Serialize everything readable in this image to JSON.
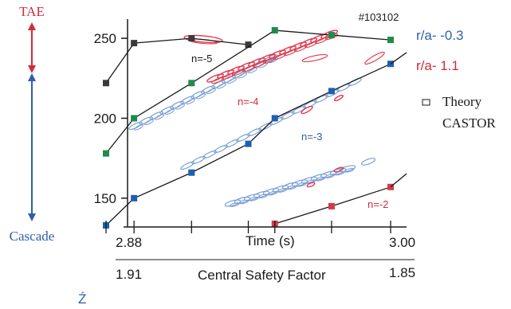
{
  "chart_data": {
    "type": "scatter",
    "title": "",
    "shot_label": "#103102",
    "xlabel": "Time (s)",
    "x_ticks": [
      "2.88",
      "3.00"
    ],
    "secondary_xlabel": "Central Safety Factor",
    "secondary_x_ticks": [
      "1.91",
      "1.85"
    ],
    "ylabel": "",
    "ylim": [
      132,
      262
    ],
    "y_ticks": [
      150,
      200,
      250
    ],
    "legend": {
      "blue_label": "r/a- -0.3",
      "red_label": "r/a- 1.1",
      "theory_line1": "Theory",
      "theory_line2": "CASTOR"
    },
    "left_annotations": {
      "top": "TAE",
      "bottom": "Cascade"
    },
    "mode_labels": [
      "n=-5",
      "n=-4",
      "n=-3",
      "n=-2"
    ],
    "theory_series": [
      {
        "name": "n=-5",
        "color": "#3a3a3a",
        "points": [
          [
            2.88,
            222
          ],
          [
            2.8837,
            247
          ],
          [
            2.8913,
            250
          ],
          [
            2.8988,
            246
          ]
        ]
      },
      {
        "name": "n=-4",
        "color": "#1f8a4c",
        "points": [
          [
            2.88,
            178
          ],
          [
            2.8837,
            200
          ],
          [
            2.8913,
            222
          ],
          [
            2.9023,
            255
          ],
          [
            2.9098,
            252
          ],
          [
            2.9176,
            249
          ]
        ]
      },
      {
        "name": "n=-3",
        "color": "#1e5fb0",
        "points": [
          [
            2.88,
            133
          ],
          [
            2.8837,
            150
          ],
          [
            2.8913,
            166
          ],
          [
            2.8988,
            184
          ],
          [
            2.9023,
            200
          ],
          [
            2.9098,
            217
          ],
          [
            2.9176,
            234
          ]
        ]
      },
      {
        "name": "n=-2",
        "color": "#d13b4a",
        "points": [
          [
            2.9023,
            134
          ],
          [
            2.9098,
            145
          ],
          [
            2.9176,
            157
          ]
        ]
      }
    ],
    "colors": {
      "blue": "#2e5fa8",
      "red": "#d42a3c",
      "contour_blue": "#7a9fd4",
      "contour_red": "#e23a4e",
      "axis": "#1a1a1a"
    }
  },
  "footer_glyph": "Ź"
}
